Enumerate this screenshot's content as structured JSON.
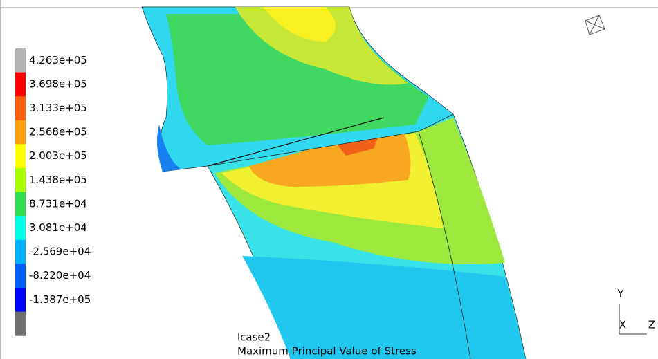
{
  "legend": {
    "colors": [
      "#b4b4b4",
      "#ff0000",
      "#ff6010",
      "#ffa010",
      "#ffff00",
      "#a8ff00",
      "#30e050",
      "#00ffe8",
      "#00b0ff",
      "#0060ff",
      "#0000ff",
      "#707070"
    ],
    "labels": [
      "4.263e+05",
      "3.698e+05",
      "3.133e+05",
      "2.568e+05",
      "2.003e+05",
      "1.438e+05",
      "8.731e+04",
      "3.081e+04",
      "-2.569e+04",
      "-8.220e+04",
      "-1.387e+05"
    ]
  },
  "caption": {
    "case": "lcase2",
    "result": "Maximum Principal Value of Stress"
  },
  "triad": {
    "y": "Y",
    "x": "X",
    "z": "Z"
  }
}
